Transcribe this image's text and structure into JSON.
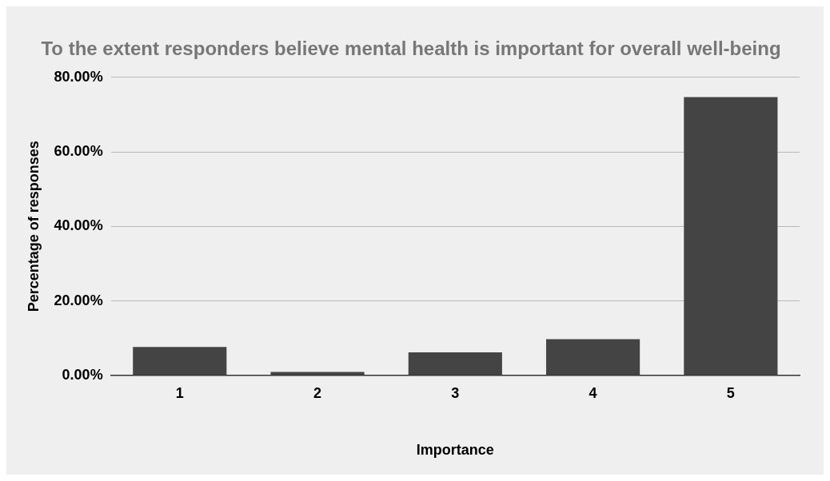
{
  "chart_data": {
    "type": "bar",
    "title": "To the extent responders believe mental health is important for overall well-being",
    "xlabel": "Importance",
    "ylabel": "Percentage of responses",
    "categories": [
      "1",
      "2",
      "3",
      "4",
      "5"
    ],
    "values": [
      7.6,
      0.9,
      6.2,
      9.7,
      74.7
    ],
    "color": "#444444",
    "ylim": [
      0,
      80
    ],
    "yticks": [
      {
        "value": 0,
        "label": "0.00%"
      },
      {
        "value": 20,
        "label": "20.00%"
      },
      {
        "value": 40,
        "label": "40.00%"
      },
      {
        "value": 60,
        "label": "60.00%"
      },
      {
        "value": 80,
        "label": "80.00%"
      }
    ],
    "grid": "y",
    "legend": false
  }
}
